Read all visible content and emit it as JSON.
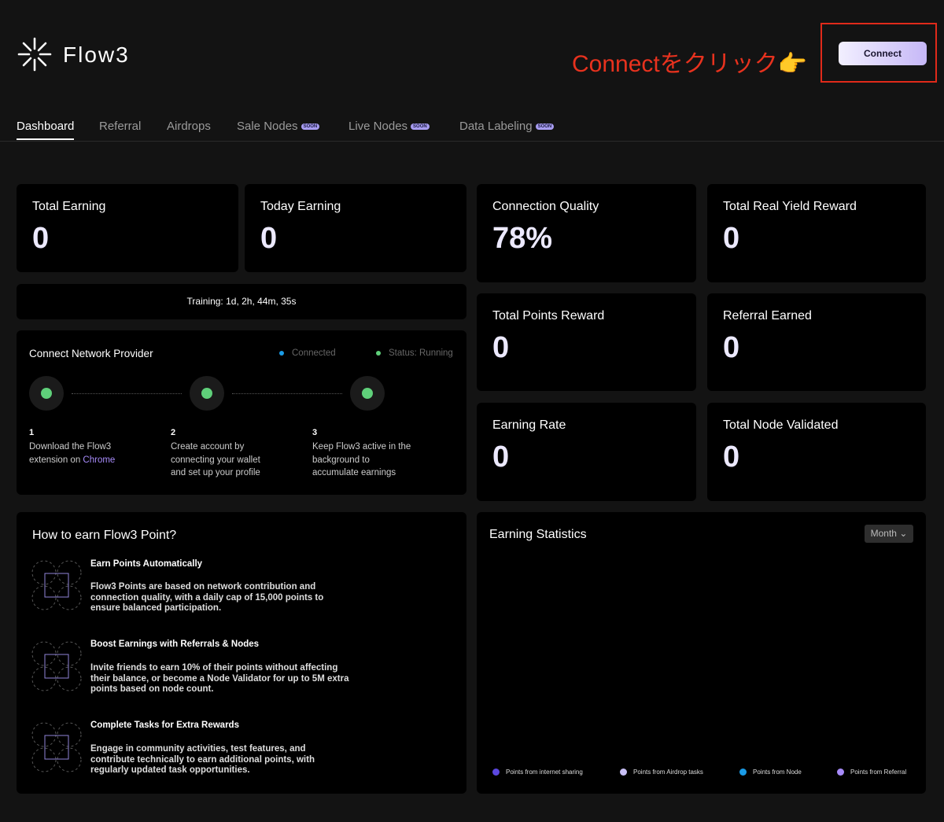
{
  "header": {
    "logo": "Flow3",
    "annotation": "Connectをクリック👉",
    "connect_button": "Connect"
  },
  "nav": {
    "tabs": [
      {
        "label": "Dashboard"
      },
      {
        "label": "Referral"
      },
      {
        "label": "Airdrops"
      },
      {
        "label": "Sale Nodes",
        "badge": "SOON"
      },
      {
        "label": "Live Nodes",
        "badge": "SOON"
      },
      {
        "label": "Data Labeling",
        "badge": "SOON"
      }
    ]
  },
  "stats": [
    {
      "label": "Total Earning",
      "value": "0"
    },
    {
      "label": "Today Earning",
      "value": "0"
    },
    {
      "label": "Connection Quality",
      "value": "78%"
    },
    {
      "label": "Total Real Yield Reward",
      "value": "0"
    },
    {
      "label": "Total Points Reward",
      "value": "0"
    },
    {
      "label": "Referral Earned",
      "value": "0"
    },
    {
      "label": "Earning Rate",
      "value": "0"
    },
    {
      "label": "Total Node Validated",
      "value": "0"
    }
  ],
  "training": "Training: 1d, 2h, 44m, 35s",
  "provider": {
    "title": "Connect Network Provider",
    "status_connected": "Connected",
    "status_running": "Status: Running",
    "steps": [
      {
        "number": "1",
        "text": "Download the Flow3 extension on",
        "link": "Chrome"
      },
      {
        "number": "2",
        "text": "Create account by connecting your wallet and set up your profile"
      },
      {
        "number": "3",
        "text": "Keep Flow3 active in the background to accumulate earnings"
      }
    ]
  },
  "how_to_earn": {
    "title": "How to earn Flow3 Point?",
    "items": [
      {
        "title": "Earn Points Automatically",
        "text": "Flow3 Points are based on network contribution and connection quality, with a daily cap of 15,000 points to ensure balanced participation."
      },
      {
        "title": "Boost Earnings with Referrals & Nodes",
        "text": "Invite friends to earn 10% of their points without affecting their balance, or become a Node Validator for up to 5M extra points based on node count."
      },
      {
        "title": "Complete Tasks for Extra Rewards",
        "text": "Engage in community activities, test features, and contribute technically to earn additional points, with regularly updated task opportunities."
      }
    ]
  },
  "earning_statistics": {
    "title": "Earning Statistics",
    "period": "Month",
    "legend": [
      {
        "name": "Points from internet sharing",
        "color": "#5b47e0"
      },
      {
        "name": "Points from Airdrop tasks",
        "color": "#c9c0f5"
      },
      {
        "name": "Points from Node",
        "color": "#1a9be6"
      },
      {
        "name": "Points from Referral",
        "color": "#a78bfa"
      }
    ]
  }
}
